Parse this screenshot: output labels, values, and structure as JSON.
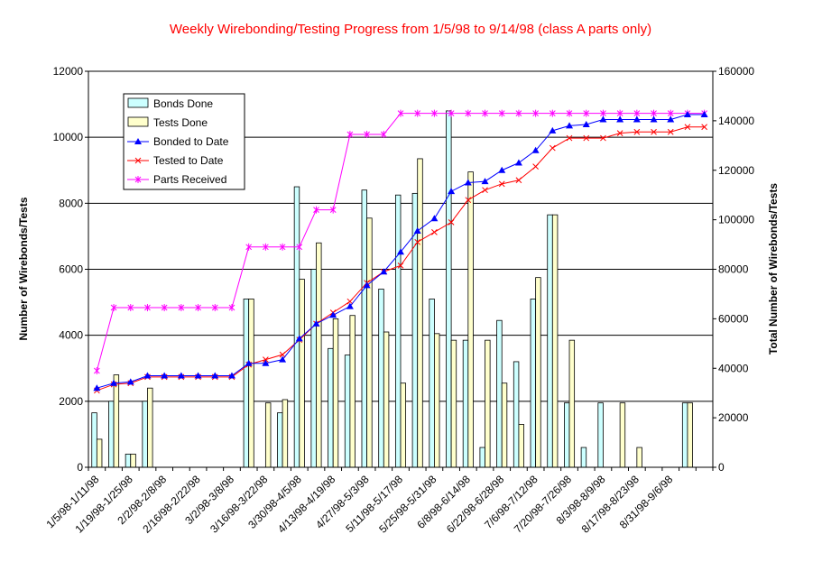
{
  "chart_data": {
    "type": "bar",
    "title": "Weekly Wirebonding/Testing Progress from 1/5/98 to 9/14/98 (class A parts only)",
    "ylabel": "Number of Wirebonds/Tests",
    "y2label": "Total Number of Wirebonds/Tests",
    "ylim": [
      0,
      12000
    ],
    "y2lim": [
      0,
      160000
    ],
    "yticks": [
      "0",
      "2000",
      "4000",
      "6000",
      "8000",
      "10000",
      "12000"
    ],
    "y2ticks": [
      "0",
      "20000",
      "40000",
      "60000",
      "80000",
      "100000",
      "120000",
      "140000",
      "160000"
    ],
    "grid": true,
    "legend_position": "top-left",
    "categories": [
      "1/5/98-1/11/98",
      "1/12/98-1/18/98",
      "1/19/98-1/25/98",
      "1/26/98-2/1/98",
      "2/2/98-2/8/98",
      "2/9/98-2/15/98",
      "2/16/98-2/22/98",
      "2/23/98-3/1/98",
      "3/2/98-3/8/98",
      "3/9/98-3/15/98",
      "3/16/98-3/22/98",
      "3/23/98-3/29/98",
      "3/30/98-4/5/98",
      "4/6/98-4/12/98",
      "4/13/98-4/19/98",
      "4/20/98-4/26/98",
      "4/27/98-5/3/98",
      "5/4/98-5/10/98",
      "5/11/98-5/17/98",
      "5/18/98-5/24/98",
      "5/25/98-5/31/98",
      "6/1/98-6/7/98",
      "6/8/98-6/14/98",
      "6/15/98-6/21/98",
      "6/22/98-6/28/98",
      "6/29/98-7/5/98",
      "7/6/98-7/12/98",
      "7/13/98-7/19/98",
      "7/20/98-7/26/98",
      "7/27/98-8/2/98",
      "8/3/98-8/9/98",
      "8/10/98-8/16/98",
      "8/17/98-8/23/98",
      "8/24/98-8/30/98",
      "8/31/98-9/6/98",
      "9/7/98-9/13/98",
      "9/14/98"
    ],
    "visible_category_labels": [
      "1/5/98-1/11/98",
      "1/19/98-1/25/98",
      "2/2/98-2/8/98",
      "2/16/98-2/22/98",
      "3/2/98-3/8/98",
      "3/16/98-3/22/98",
      "3/30/98-4/5/98",
      "4/13/98-4/19/98",
      "4/27/98-5/3/98",
      "5/11/98-5/17/98",
      "5/25/98-5/31/98",
      "6/8/98-6/14/98",
      "6/22/98-6/28/98",
      "7/6/98-7/12/98",
      "7/20/98-7/26/98",
      "8/3/98-8/9/98",
      "8/17/98-8/23/98",
      "8/31/98-9/6/98"
    ],
    "bar_series": [
      {
        "name": "Bonds Done",
        "color": "#ccffff",
        "values": [
          1650,
          2000,
          400,
          2000,
          0,
          0,
          0,
          0,
          0,
          5100,
          0,
          1650,
          8500,
          6000,
          3600,
          3400,
          8400,
          5400,
          8250,
          8300,
          5100,
          10800,
          3850,
          600,
          4450,
          3200,
          5100,
          7650,
          1950,
          600,
          1950,
          0,
          0,
          0,
          0,
          1950,
          0
        ]
      },
      {
        "name": "Tests Done",
        "color": "#ffffcc",
        "values": [
          850,
          2800,
          400,
          2400,
          0,
          0,
          0,
          0,
          0,
          5100,
          1950,
          2050,
          5700,
          6800,
          4500,
          4600,
          7550,
          4100,
          2550,
          9350,
          4050,
          3850,
          8950,
          3850,
          2550,
          1300,
          5750,
          7650,
          3850,
          0,
          0,
          1950,
          600,
          0,
          0,
          1950,
          0
        ]
      }
    ],
    "line_series": [
      {
        "name": "Bonded to Date",
        "color": "#0000ff",
        "marker": "triangle",
        "values": [
          32000,
          34000,
          34500,
          37000,
          37000,
          37000,
          37000,
          37000,
          37000,
          42000,
          42000,
          43500,
          52000,
          58000,
          61500,
          65000,
          73500,
          79000,
          87000,
          95500,
          100500,
          111500,
          115000,
          115500,
          120000,
          123000,
          128000,
          136000,
          138000,
          138500,
          140500,
          140500,
          140500,
          140500,
          140500,
          142500,
          142500
        ]
      },
      {
        "name": "Tested to Date",
        "color": "#ff0000",
        "marker": "x",
        "values": [
          31000,
          33500,
          34000,
          36500,
          36500,
          36500,
          36500,
          36500,
          36500,
          41500,
          43500,
          45500,
          51500,
          58000,
          62500,
          67000,
          74500,
          79000,
          81500,
          91000,
          95000,
          99000,
          108000,
          112000,
          114500,
          116000,
          121500,
          129000,
          133000,
          133000,
          133000,
          135000,
          135500,
          135500,
          135500,
          137500,
          137500
        ]
      },
      {
        "name": "Parts Received",
        "color": "#ff00ff",
        "marker": "star",
        "values": [
          39000,
          64500,
          64500,
          64500,
          64500,
          64500,
          64500,
          64500,
          64500,
          89000,
          89000,
          89000,
          89000,
          104000,
          104000,
          134500,
          134500,
          134500,
          143000,
          143000,
          143000,
          143000,
          143000,
          143000,
          143000,
          143000,
          143000,
          143000,
          143000,
          143000,
          143000,
          143000,
          143000,
          143000,
          143000,
          143000,
          143000
        ]
      }
    ]
  }
}
